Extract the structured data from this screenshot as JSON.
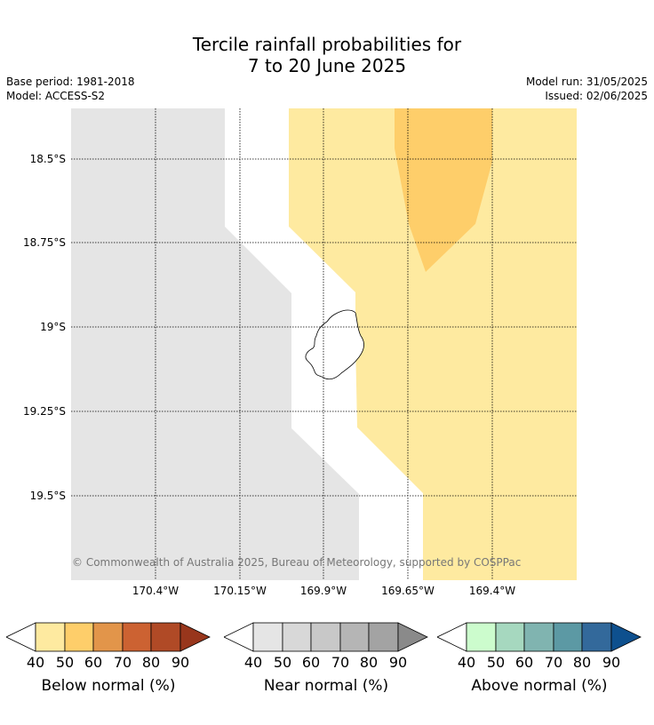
{
  "header": {
    "title_line1": "Tercile rainfall probabilities for",
    "title_line2": "7 to 20 June 2025",
    "base_period": "Base period: 1981-2018",
    "model": "Model: ACCESS-S2",
    "model_run": "Model run: 31/05/2025",
    "issued": "Issued: 02/06/2025"
  },
  "map": {
    "lat_labels": [
      "18.5°S",
      "18.75°S",
      "19°S",
      "19.25°S",
      "19.5°S"
    ],
    "lon_labels": [
      "170.4°W",
      "170.15°W",
      "169.9°W",
      "169.65°W",
      "169.4°W"
    ],
    "copyright": "© Commonwealth of Australia 2025, Bureau of Meteorology, supported by COSPPac",
    "colors": {
      "near_normal_40": "#e5e5e5",
      "below_normal_40": "#feeaa0",
      "below_normal_50": "#fece6a",
      "no_signal": "#ffffff"
    }
  },
  "colorbars": [
    {
      "label": "Below normal (%)",
      "ticks": [
        "40",
        "50",
        "60",
        "70",
        "80",
        "90"
      ],
      "colors": [
        "#feeaa0",
        "#fece6a",
        "#e2954a",
        "#cc6232",
        "#b04a26",
        "#98361c"
      ]
    },
    {
      "label": "Near normal (%)",
      "ticks": [
        "40",
        "50",
        "60",
        "70",
        "80",
        "90"
      ],
      "colors": [
        "#e5e5e5",
        "#d8d8d8",
        "#c8c8c8",
        "#b5b5b5",
        "#a3a3a3",
        "#8a8a8a"
      ]
    },
    {
      "label": "Above normal (%)",
      "ticks": [
        "40",
        "50",
        "60",
        "70",
        "80",
        "90"
      ],
      "colors": [
        "#ccfccd",
        "#a6d8bf",
        "#80b4b0",
        "#5c99a4",
        "#33699b",
        "#0e508e"
      ]
    }
  ]
}
